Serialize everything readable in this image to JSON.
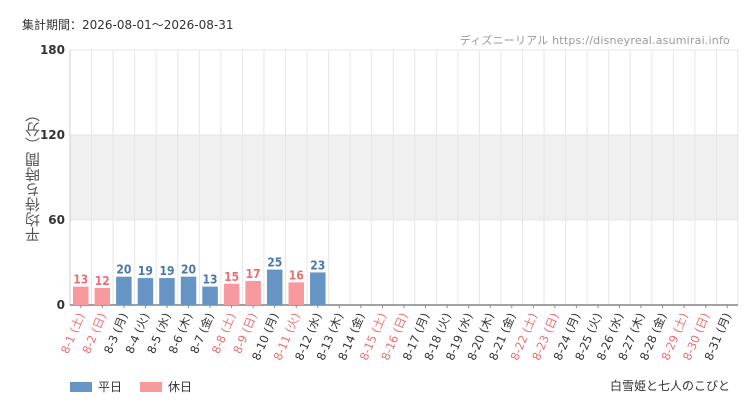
{
  "header": {
    "period": "集計期間：2026-08-01～2026-08-31",
    "credit": "ディズニーリアル https://disneyreal.asumirai.info"
  },
  "footer": {
    "attraction": "白雪姫と七人のこびと"
  },
  "colors": {
    "weekday": "#6694c4",
    "holiday": "#f79a9d",
    "weekday_text": "#4a78ad",
    "holiday_text": "#ec6e73",
    "band": "#f0f0f0",
    "grid": "#e6e6e6"
  },
  "chart_data": {
    "type": "bar",
    "ylabel": "平均待ち時間（分）",
    "ylim": [
      0,
      180
    ],
    "yticks": [
      0,
      60,
      120,
      180
    ],
    "grid": true,
    "legend_placement": "bottom-left",
    "legend": [
      {
        "label": "平日",
        "kind": "weekday"
      },
      {
        "label": "休日",
        "kind": "holiday"
      }
    ],
    "categories": [
      {
        "label": "8-1 (土)",
        "kind": "holiday",
        "value": 13
      },
      {
        "label": "8-2 (日)",
        "kind": "holiday",
        "value": 12
      },
      {
        "label": "8-3 (月)",
        "kind": "weekday",
        "value": 20
      },
      {
        "label": "8-4 (火)",
        "kind": "weekday",
        "value": 19
      },
      {
        "label": "8-5 (水)",
        "kind": "weekday",
        "value": 19
      },
      {
        "label": "8-6 (木)",
        "kind": "weekday",
        "value": 20
      },
      {
        "label": "8-7 (金)",
        "kind": "weekday",
        "value": 13
      },
      {
        "label": "8-8 (土)",
        "kind": "holiday",
        "value": 15
      },
      {
        "label": "8-9 (日)",
        "kind": "holiday",
        "value": 17
      },
      {
        "label": "8-10 (月)",
        "kind": "weekday",
        "value": 25
      },
      {
        "label": "8-11 (火)",
        "kind": "holiday",
        "value": 16
      },
      {
        "label": "8-12 (水)",
        "kind": "weekday",
        "value": 23
      },
      {
        "label": "8-13 (木)",
        "kind": "weekday",
        "value": null
      },
      {
        "label": "8-14 (金)",
        "kind": "weekday",
        "value": null
      },
      {
        "label": "8-15 (土)",
        "kind": "holiday",
        "value": null
      },
      {
        "label": "8-16 (日)",
        "kind": "holiday",
        "value": null
      },
      {
        "label": "8-17 (月)",
        "kind": "weekday",
        "value": null
      },
      {
        "label": "8-18 (火)",
        "kind": "weekday",
        "value": null
      },
      {
        "label": "8-19 (水)",
        "kind": "weekday",
        "value": null
      },
      {
        "label": "8-20 (木)",
        "kind": "weekday",
        "value": null
      },
      {
        "label": "8-21 (金)",
        "kind": "weekday",
        "value": null
      },
      {
        "label": "8-22 (土)",
        "kind": "holiday",
        "value": null
      },
      {
        "label": "8-23 (日)",
        "kind": "holiday",
        "value": null
      },
      {
        "label": "8-24 (月)",
        "kind": "weekday",
        "value": null
      },
      {
        "label": "8-25 (火)",
        "kind": "weekday",
        "value": null
      },
      {
        "label": "8-26 (水)",
        "kind": "weekday",
        "value": null
      },
      {
        "label": "8-27 (木)",
        "kind": "weekday",
        "value": null
      },
      {
        "label": "8-28 (金)",
        "kind": "weekday",
        "value": null
      },
      {
        "label": "8-29 (土)",
        "kind": "holiday",
        "value": null
      },
      {
        "label": "8-30 (日)",
        "kind": "holiday",
        "value": null
      },
      {
        "label": "8-31 (月)",
        "kind": "weekday",
        "value": null
      }
    ]
  }
}
